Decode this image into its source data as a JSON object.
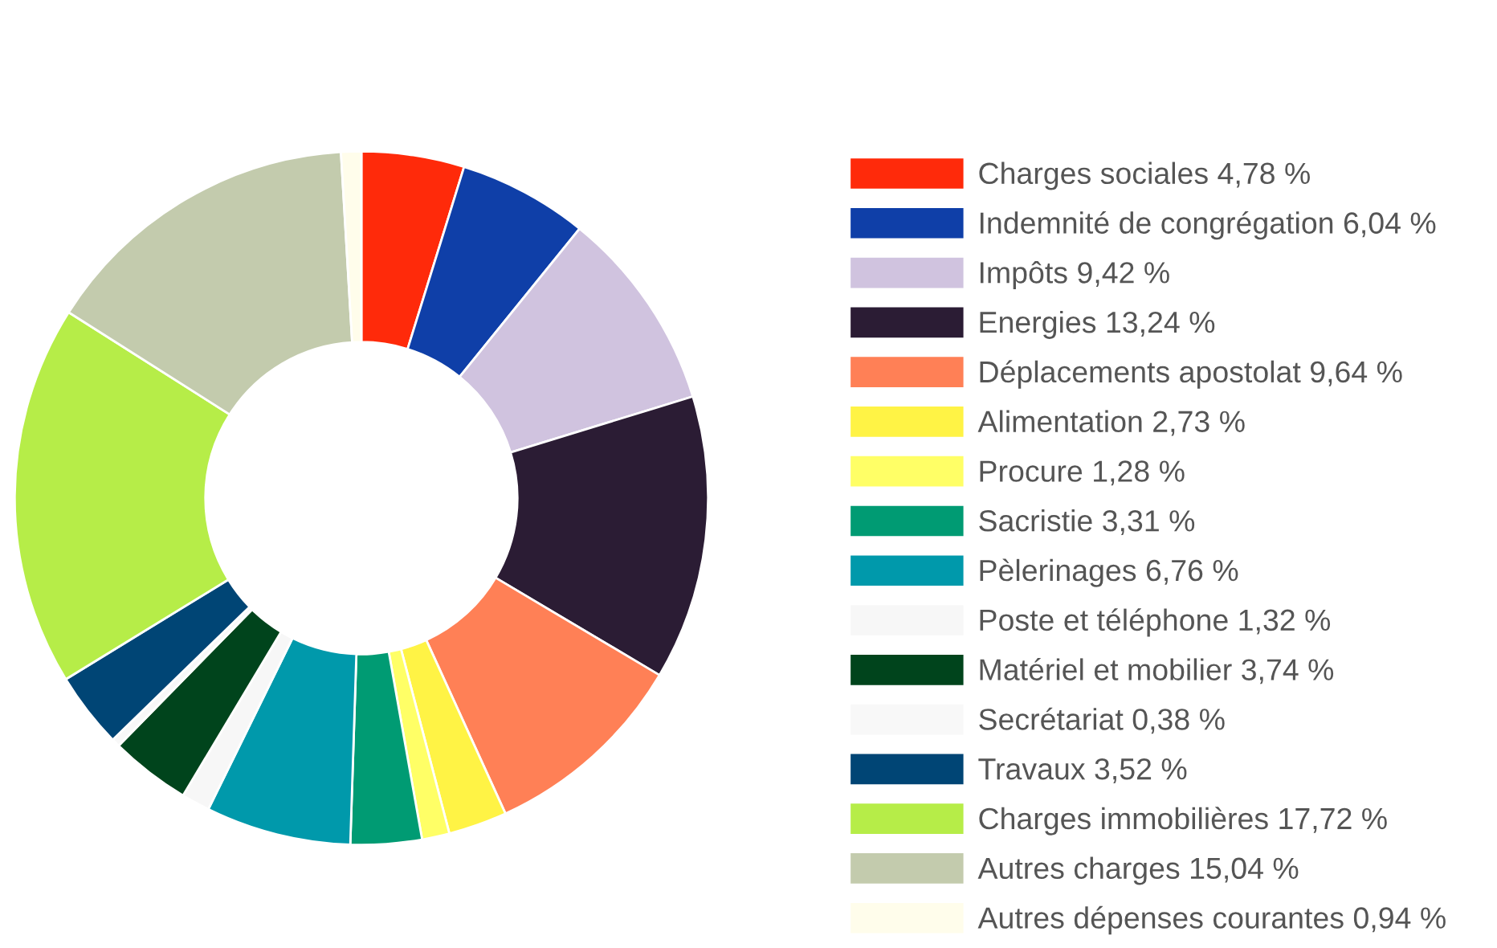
{
  "chart_data": {
    "type": "donut",
    "categories": [
      "Charges sociales",
      "Indemnité de congrégation",
      "Impôts",
      "Energies",
      "Déplacements apostolat",
      "Alimentation",
      "Procure",
      "Sacristie",
      "Pèlerinages",
      "Poste et téléphone",
      "Matériel et mobilier",
      "Secrétariat",
      "Travaux",
      "Charges immobilières",
      "Autres charges",
      "Autres dépenses courantes"
    ],
    "values": [
      4.78,
      6.04,
      9.42,
      13.24,
      9.64,
      2.73,
      1.28,
      3.31,
      6.76,
      1.32,
      3.74,
      0.38,
      3.52,
      17.72,
      15.04,
      0.94
    ],
    "value_labels": [
      "4,78 %",
      "6,04 %",
      "9,42 %",
      "13,24 %",
      "9,64 %",
      "2,73 %",
      "1,28 %",
      "3,31 %",
      "6,76 %",
      "1,32 %",
      "3,74 %",
      "0,38 %",
      "3,52 %",
      "17,72 %",
      "15,04 %",
      "0,94 %"
    ],
    "colors": [
      "#ff2a0a",
      "#0f3fa8",
      "#d0c3df",
      "#2b1c34",
      "#ff8056",
      "#fff345",
      "#ffff66",
      "#009b73",
      "#0099ab",
      "#f7f7f7",
      "#00441c",
      "#f8f8f8",
      "#004575",
      "#b6ed48",
      "#c3cbad",
      "#fffdeb"
    ],
    "legend": "right"
  }
}
